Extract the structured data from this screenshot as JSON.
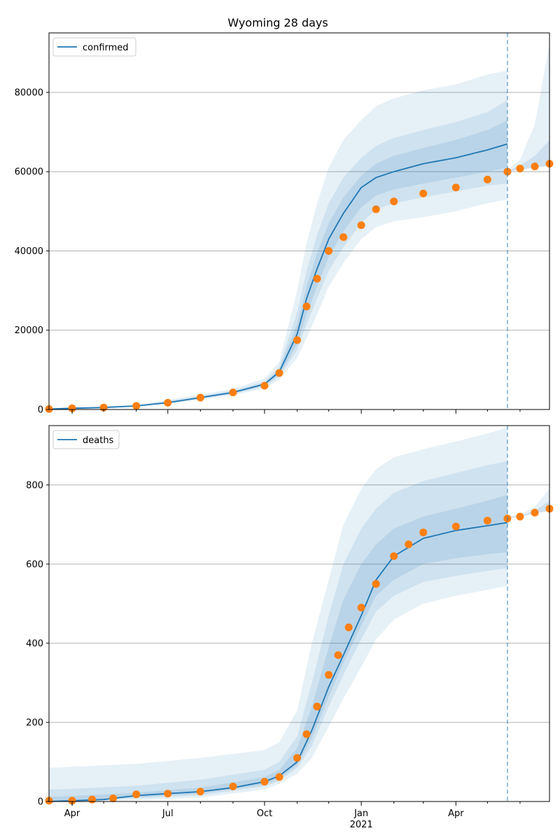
{
  "title": "Wyoming 28 days",
  "colors": {
    "model": "#1f77b4",
    "observed": "#ff7f0e",
    "band": "#1f77b4",
    "grid": "#b0b0b0"
  },
  "chart_data": [
    {
      "type": "line",
      "panel": "top",
      "legend": "confirmed",
      "legend_loc": "top-left",
      "xlim": [
        "2020-03-10",
        "2021-06-29"
      ],
      "ylim": [
        0,
        95000
      ],
      "yticks": [
        0,
        20000,
        40000,
        60000,
        80000
      ],
      "grid": "y",
      "forecast_date": "2021-05-20",
      "model": {
        "x": [
          "2020-03-10",
          "2020-04-01",
          "2020-05-01",
          "2020-06-01",
          "2020-07-01",
          "2020-08-01",
          "2020-09-01",
          "2020-10-01",
          "2020-10-15",
          "2020-11-01",
          "2020-11-10",
          "2020-11-20",
          "2020-12-01",
          "2020-12-15",
          "2021-01-01",
          "2021-01-15",
          "2021-02-01",
          "2021-03-01",
          "2021-04-01",
          "2021-05-01",
          "2021-05-20"
        ],
        "y": [
          100,
          300,
          500,
          900,
          1700,
          3000,
          4300,
          6400,
          9500,
          19000,
          28000,
          35500,
          43000,
          49500,
          56000,
          58500,
          60000,
          62000,
          63500,
          65500,
          67000
        ]
      },
      "bands": {
        "x": [
          "2020-03-10",
          "2020-06-01",
          "2020-08-01",
          "2020-09-01",
          "2020-10-01",
          "2020-10-15",
          "2020-11-01",
          "2020-11-10",
          "2020-11-20",
          "2020-12-01",
          "2020-12-15",
          "2021-01-01",
          "2021-01-15",
          "2021-02-01",
          "2021-03-01",
          "2021-04-01",
          "2021-05-01",
          "2021-05-20"
        ],
        "outer_low": [
          0,
          700,
          2400,
          3600,
          5300,
          7500,
          13000,
          18000,
          24000,
          31000,
          37000,
          43000,
          46000,
          47500,
          48500,
          50000,
          52000,
          53000
        ],
        "outer_high": [
          400,
          1100,
          3800,
          5200,
          7800,
          12000,
          30000,
          42000,
          52000,
          61000,
          68000,
          73000,
          76500,
          78500,
          80500,
          82000,
          84500,
          85500
        ],
        "mid_low": [
          50,
          800,
          2700,
          3900,
          5800,
          8300,
          15000,
          21500,
          28000,
          35000,
          41000,
          47000,
          50500,
          52000,
          53500,
          55000,
          56500,
          57000
        ],
        "mid_high": [
          250,
          1000,
          3400,
          4800,
          7000,
          10800,
          24500,
          35000,
          44000,
          52000,
          58500,
          63500,
          66500,
          68500,
          70500,
          72500,
          75000,
          78000
        ],
        "inner_low": [
          80,
          850,
          2850,
          4100,
          6100,
          8800,
          16500,
          24000,
          31000,
          38500,
          45000,
          51000,
          54000,
          55500,
          57000,
          58500,
          60000,
          61000
        ],
        "inner_high": [
          180,
          950,
          3150,
          4500,
          6600,
          10200,
          21500,
          31000,
          39500,
          47000,
          53500,
          59000,
          62000,
          64000,
          66000,
          68000,
          70500,
          73000
        ]
      },
      "future_bands": {
        "x": [
          "2021-05-20",
          "2021-06-01",
          "2021-06-15",
          "2021-06-29"
        ],
        "outer_low": [
          60000,
          60500,
          61000,
          61500
        ],
        "outer_high": [
          60500,
          63000,
          72000,
          92000
        ],
        "inner_low": [
          60000,
          60500,
          61000,
          61500
        ],
        "inner_high": [
          60200,
          61500,
          64000,
          68000
        ]
      },
      "observed": {
        "x": [
          "2020-03-10",
          "2020-04-01",
          "2020-05-01",
          "2020-06-01",
          "2020-07-01",
          "2020-08-01",
          "2020-09-01",
          "2020-10-01",
          "2020-10-15",
          "2020-11-01",
          "2020-11-10",
          "2020-11-20",
          "2020-12-01",
          "2020-12-15",
          "2021-01-01",
          "2021-01-15",
          "2021-02-01",
          "2021-03-01",
          "2021-04-01",
          "2021-05-01",
          "2021-05-20",
          "2021-06-01",
          "2021-06-15",
          "2021-06-29"
        ],
        "y": [
          100,
          300,
          500,
          900,
          1700,
          3000,
          4300,
          6000,
          9200,
          17500,
          26000,
          33000,
          40000,
          43500,
          46500,
          50500,
          52500,
          54500,
          56000,
          58000,
          60000,
          60800,
          61300,
          62000
        ]
      }
    },
    {
      "type": "line",
      "panel": "bottom",
      "legend": "deaths",
      "legend_loc": "top-left",
      "xlim": [
        "2020-03-10",
        "2021-06-29"
      ],
      "ylim": [
        0,
        950
      ],
      "yticks": [
        0,
        200,
        400,
        600,
        800
      ],
      "grid": "y",
      "forecast_date": "2021-05-20",
      "xticks": [
        {
          "date": "2020-04-01",
          "label": "Apr",
          "sub": ""
        },
        {
          "date": "2020-07-01",
          "label": "Jul",
          "sub": ""
        },
        {
          "date": "2020-10-01",
          "label": "Oct",
          "sub": ""
        },
        {
          "date": "2021-01-01",
          "label": "Jan",
          "sub": "2021"
        },
        {
          "date": "2021-04-01",
          "label": "Apr",
          "sub": ""
        }
      ],
      "minor_ticks": [
        "2020-05-01",
        "2020-06-01",
        "2020-08-01",
        "2020-09-01",
        "2020-11-01",
        "2020-12-01",
        "2021-02-01",
        "2021-03-01",
        "2021-05-01",
        "2021-06-01"
      ],
      "model": {
        "x": [
          "2020-03-10",
          "2020-04-01",
          "2020-05-01",
          "2020-06-01",
          "2020-07-01",
          "2020-08-01",
          "2020-09-01",
          "2020-10-01",
          "2020-10-15",
          "2020-11-01",
          "2020-11-15",
          "2020-12-01",
          "2020-12-15",
          "2021-01-01",
          "2021-01-15",
          "2021-02-01",
          "2021-03-01",
          "2021-04-01",
          "2021-05-01",
          "2021-05-20"
        ],
        "y": [
          0,
          2,
          5,
          15,
          20,
          25,
          35,
          50,
          65,
          100,
          180,
          290,
          370,
          470,
          560,
          620,
          665,
          685,
          697,
          705
        ]
      },
      "bands": {
        "x": [
          "2020-03-10",
          "2020-04-01",
          "2020-06-01",
          "2020-08-01",
          "2020-10-01",
          "2020-10-15",
          "2020-11-01",
          "2020-11-15",
          "2020-12-01",
          "2020-12-15",
          "2021-01-01",
          "2021-01-15",
          "2021-02-01",
          "2021-03-01",
          "2021-04-01",
          "2021-05-01",
          "2021-05-20"
        ],
        "outer_low": [
          0,
          0,
          3,
          10,
          30,
          45,
          70,
          110,
          190,
          260,
          340,
          410,
          460,
          500,
          520,
          535,
          545
        ],
        "outer_high": [
          85,
          88,
          95,
          110,
          130,
          150,
          230,
          400,
          560,
          700,
          790,
          840,
          870,
          890,
          910,
          930,
          945
        ],
        "mid_low": [
          0,
          1,
          8,
          16,
          38,
          52,
          85,
          140,
          240,
          320,
          410,
          480,
          520,
          555,
          570,
          583,
          590
        ],
        "mid_high": [
          30,
          32,
          40,
          55,
          80,
          100,
          165,
          300,
          470,
          600,
          690,
          740,
          780,
          810,
          830,
          850,
          860
        ],
        "inner_low": [
          0,
          2,
          11,
          20,
          43,
          58,
          92,
          160,
          265,
          350,
          445,
          520,
          560,
          600,
          615,
          625,
          630
        ],
        "inner_high": [
          12,
          14,
          22,
          35,
          62,
          80,
          135,
          240,
          390,
          510,
          600,
          650,
          690,
          720,
          740,
          760,
          775
        ]
      },
      "future_bands": {
        "x": [
          "2021-05-20",
          "2021-06-01",
          "2021-06-15",
          "2021-06-29"
        ],
        "outer_low": [
          715,
          720,
          728,
          735
        ],
        "outer_high": [
          720,
          725,
          745,
          790
        ],
        "inner_low": [
          715,
          720,
          728,
          735
        ],
        "inner_high": [
          718,
          722,
          735,
          760
        ]
      },
      "observed": {
        "x": [
          "2020-03-10",
          "2020-04-01",
          "2020-04-20",
          "2020-05-10",
          "2020-06-01",
          "2020-07-01",
          "2020-08-01",
          "2020-09-01",
          "2020-10-01",
          "2020-10-15",
          "2020-11-01",
          "2020-11-10",
          "2020-11-20",
          "2020-12-01",
          "2020-12-10",
          "2020-12-20",
          "2021-01-01",
          "2021-01-15",
          "2021-02-01",
          "2021-02-15",
          "2021-03-01",
          "2021-04-01",
          "2021-05-01",
          "2021-05-20",
          "2021-06-01",
          "2021-06-15",
          "2021-06-29"
        ],
        "y": [
          2,
          2,
          5,
          8,
          18,
          20,
          25,
          38,
          50,
          62,
          110,
          170,
          240,
          320,
          370,
          440,
          490,
          550,
          620,
          650,
          680,
          695,
          710,
          715,
          720,
          730,
          740
        ]
      }
    }
  ]
}
